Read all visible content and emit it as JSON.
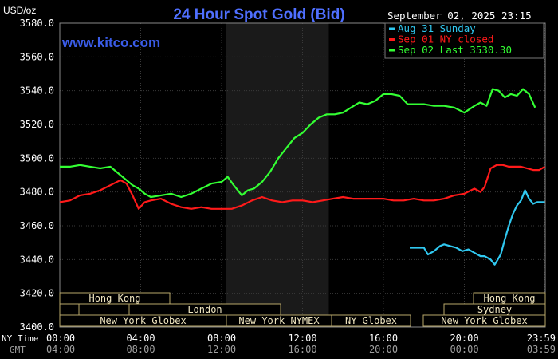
{
  "header": {
    "unit": "USD/oz",
    "title": "24 Hour Spot Gold (Bid)",
    "timestamp": "September 02, 2025 23:15",
    "watermark": "www.kitco.com"
  },
  "legend": [
    {
      "label": "Aug 31 Sunday",
      "color": "#30c8f0"
    },
    {
      "label": "Sep 01 NY closed",
      "color": "#ff1a1a"
    },
    {
      "label": "Sep 02 Last 3530.30",
      "color": "#33ff33"
    }
  ],
  "colors": {
    "background": "#000000",
    "plot_background": "#000000",
    "shaded_region": "#1a1a1a",
    "grid": "#3a3a3a",
    "session_fill": "#000000",
    "session_border": "#b8a76a",
    "session_text": "#f0e6c0",
    "axis_text": "#ffffff",
    "gmt_text": "#a0a0a0",
    "title": "#4f6fff",
    "watermark": "#3a5ce8"
  },
  "axis_labels": {
    "ny_time": "NY Time",
    "gmt": "GMT"
  },
  "sessions": {
    "row1": [
      {
        "label": "Hong Kong"
      },
      {
        "label": "Hong Kong"
      }
    ],
    "row2": [
      {
        "label": "London"
      },
      {
        "label": "Sydney"
      }
    ],
    "row3": [
      {
        "label": "New York Globex"
      },
      {
        "label": "New York NYMEX"
      },
      {
        "label": "NY Globex"
      },
      {
        "label": "New York Globex"
      }
    ]
  },
  "chart_data": {
    "type": "line",
    "title": "24 Hour Spot Gold (Bid)",
    "ylabel": "USD/oz",
    "ylim": [
      3400,
      3580
    ],
    "xlim": [
      0,
      24
    ],
    "grid": true,
    "legend_position": "top-right",
    "yticks": [
      "3580.0",
      "3560.0",
      "3540.0",
      "3520.0",
      "3500.0",
      "3480.0",
      "3460.0",
      "3440.0",
      "3420.0",
      "3400.0"
    ],
    "yticks_values": [
      3580,
      3560,
      3540,
      3520,
      3500,
      3480,
      3460,
      3440,
      3420,
      3400
    ],
    "xticks_ny": [
      "00:00",
      "04:00",
      "08:00",
      "12:00",
      "16:00",
      "20:00",
      "23:59"
    ],
    "xticks_gmt": [
      "04:00",
      "08:00",
      "12:00",
      "16:00",
      "20:00",
      "00:00",
      "03:59"
    ],
    "xticks_values": [
      0,
      4,
      8,
      12,
      16,
      20,
      23.98
    ],
    "shaded_hours": [
      8.2,
      13.3
    ],
    "series": [
      {
        "name": "Aug 31 Sunday",
        "color": "#30c8f0",
        "x": [
          17.3,
          17.8,
          18.0,
          18.2,
          18.5,
          18.8,
          19.0,
          19.3,
          19.6,
          19.9,
          20.2,
          20.5,
          20.8,
          21.0,
          21.3,
          21.5,
          21.8,
          22.0,
          22.2,
          22.4,
          22.6,
          22.8,
          23.0,
          23.2,
          23.4,
          23.6,
          23.8,
          23.98
        ],
        "y": [
          3447,
          3447,
          3447,
          3443,
          3445,
          3448,
          3449,
          3448,
          3447,
          3445,
          3446,
          3444,
          3442,
          3442,
          3440,
          3437,
          3443,
          3452,
          3460,
          3467,
          3472,
          3475,
          3481,
          3476,
          3473,
          3474,
          3474,
          3474
        ]
      },
      {
        "name": "Sep 01 NY closed",
        "color": "#ff1a1a",
        "x": [
          0,
          0.5,
          1.0,
          1.5,
          2.0,
          2.5,
          3.0,
          3.3,
          3.6,
          3.9,
          4.2,
          4.5,
          5.0,
          5.5,
          6.0,
          6.5,
          7.0,
          7.5,
          8.0,
          8.5,
          9.0,
          9.5,
          10.0,
          10.5,
          11.0,
          11.5,
          12.0,
          12.5,
          13.0,
          13.5,
          14.0,
          14.5,
          15.0,
          15.5,
          16.0,
          16.5,
          17.0,
          17.5,
          18.0,
          18.5,
          19.0,
          19.5,
          20.0,
          20.5,
          20.8,
          21.0,
          21.3,
          21.6,
          21.9,
          22.2,
          22.5,
          22.8,
          23.1,
          23.4,
          23.7,
          23.98
        ],
        "y": [
          3474,
          3475,
          3478,
          3479,
          3481,
          3484,
          3487,
          3485,
          3478,
          3470,
          3474,
          3475,
          3476,
          3473,
          3471,
          3470,
          3471,
          3470,
          3470,
          3470,
          3472,
          3475,
          3477,
          3475,
          3474,
          3475,
          3475,
          3474,
          3475,
          3476,
          3477,
          3476,
          3476,
          3476,
          3476,
          3475,
          3475,
          3476,
          3475,
          3475,
          3476,
          3478,
          3479,
          3482,
          3480,
          3483,
          3494,
          3496,
          3496,
          3495,
          3495,
          3495,
          3494,
          3493,
          3493,
          3495
        ]
      },
      {
        "name": "Sep 02 Last 3530.30",
        "color": "#33ff33",
        "x": [
          0,
          0.5,
          1.0,
          1.5,
          2.0,
          2.5,
          3.0,
          3.3,
          3.6,
          3.9,
          4.2,
          4.5,
          5.0,
          5.5,
          6.0,
          6.5,
          7.0,
          7.5,
          8.0,
          8.3,
          8.6,
          9.0,
          9.3,
          9.6,
          10.0,
          10.4,
          10.8,
          11.2,
          11.6,
          12.0,
          12.4,
          12.8,
          13.2,
          13.6,
          14.0,
          14.4,
          14.8,
          15.2,
          15.6,
          16.0,
          16.4,
          16.8,
          17.2,
          17.6,
          18.0,
          18.5,
          19.0,
          19.5,
          20.0,
          20.5,
          20.8,
          21.1,
          21.4,
          21.7,
          22.0,
          22.3,
          22.6,
          22.9,
          23.2,
          23.5
        ],
        "y": [
          3495,
          3495,
          3496,
          3495,
          3494,
          3495,
          3490,
          3487,
          3484,
          3482,
          3479,
          3477,
          3478,
          3479,
          3477,
          3479,
          3482,
          3485,
          3486,
          3489,
          3484,
          3478,
          3481,
          3482,
          3486,
          3492,
          3500,
          3506,
          3512,
          3515,
          3520,
          3524,
          3526,
          3526,
          3527,
          3530,
          3533,
          3532,
          3534,
          3538,
          3538,
          3537,
          3532,
          3532,
          3532,
          3531,
          3531,
          3530,
          3527,
          3531,
          3533,
          3531,
          3541,
          3540,
          3536,
          3538,
          3537,
          3541,
          3538,
          3530
        ]
      }
    ]
  }
}
